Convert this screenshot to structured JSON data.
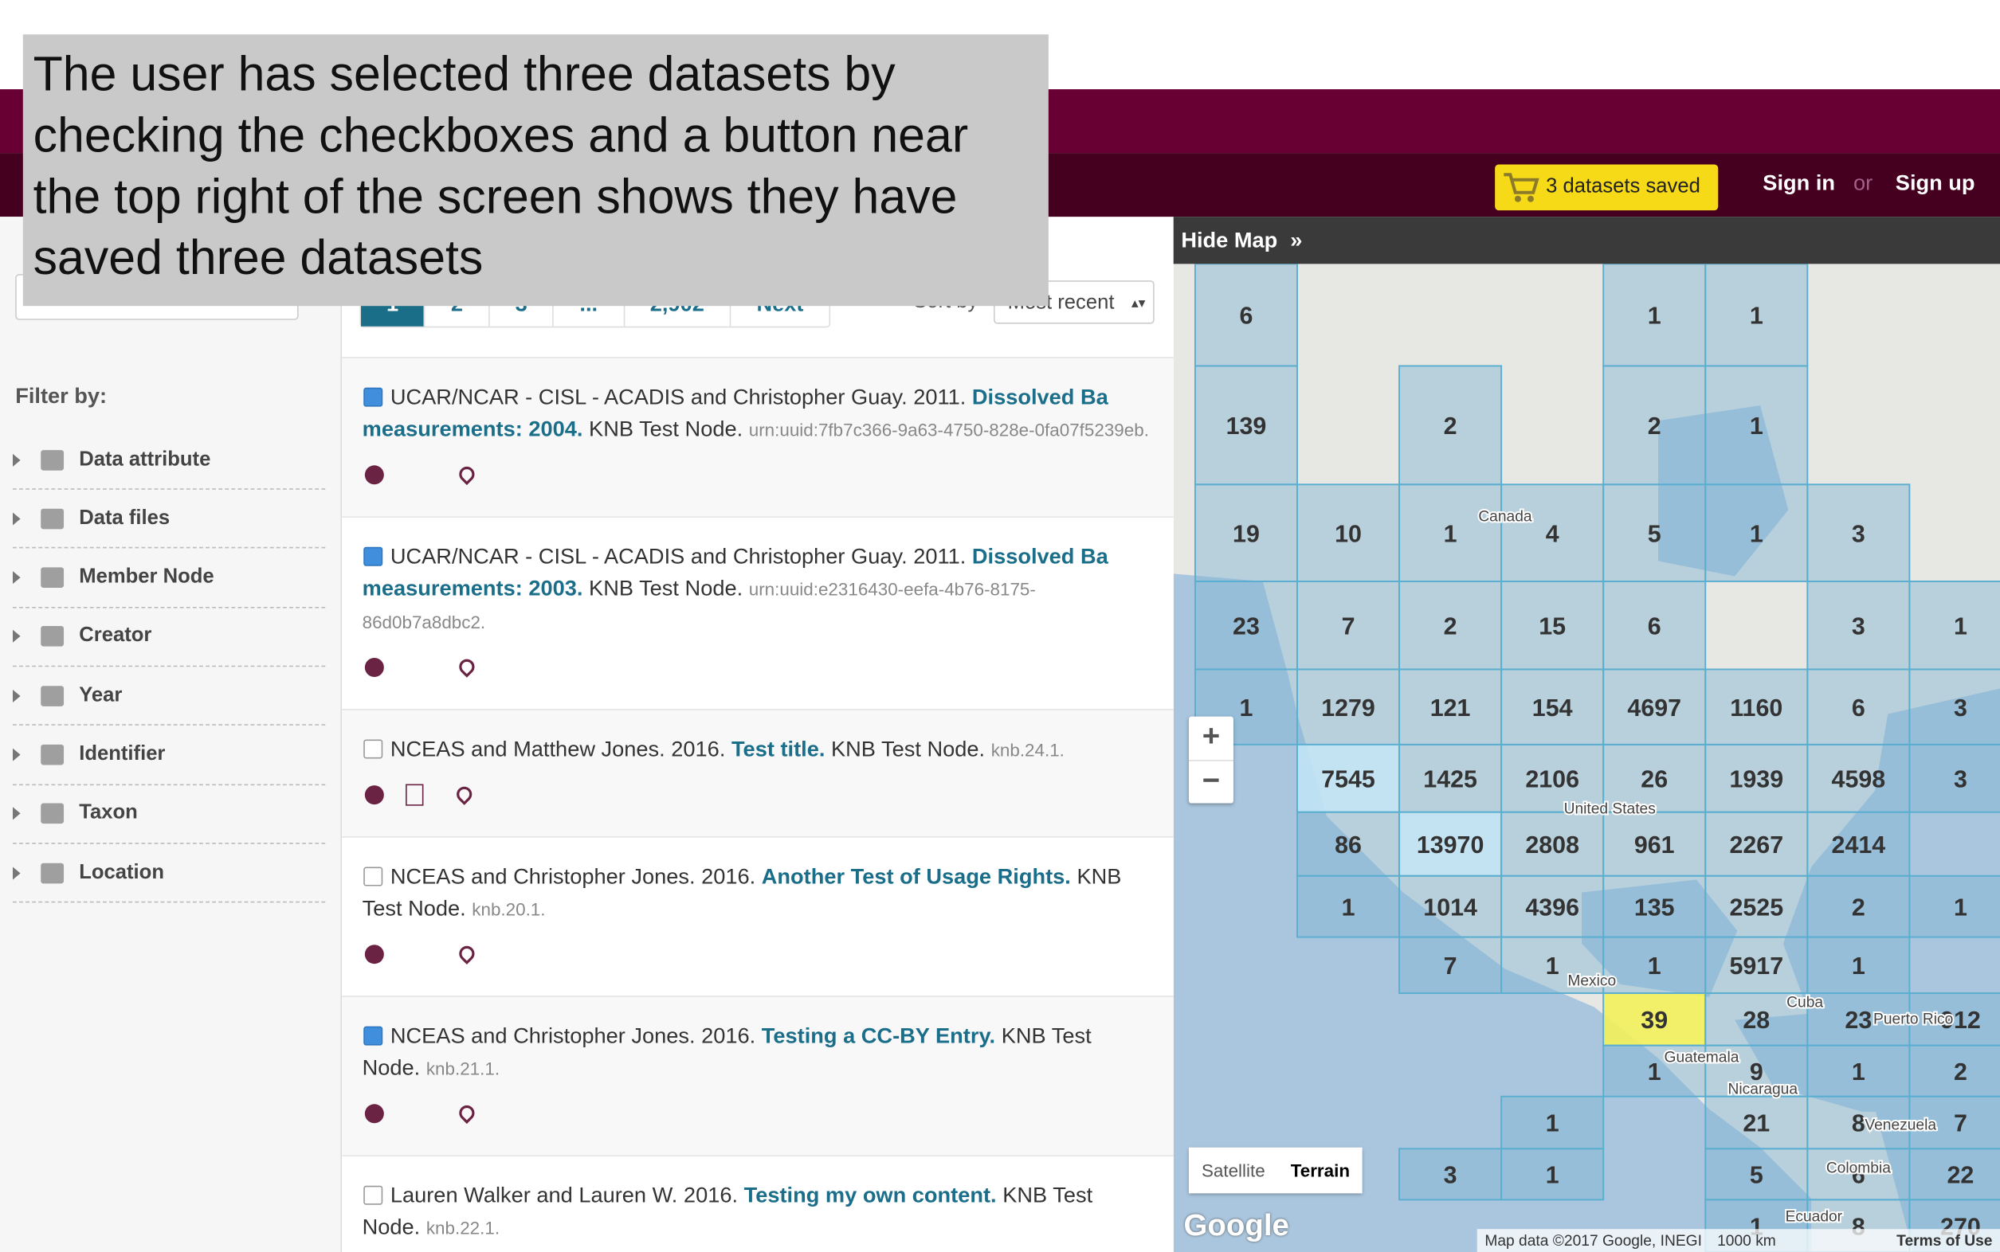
{
  "annotation": "The user has selected three datasets by checking the checkboxes and a button near the top right of the screen shows they have saved three datasets",
  "header": {
    "cart_button": "3 datasets saved",
    "sign_in": "Sign in",
    "or": "or",
    "sign_up": "Sign up"
  },
  "pagination": {
    "pages": [
      "1",
      "2",
      "3",
      "...",
      "2,902"
    ],
    "next": "Next",
    "sort_label": "Sort by",
    "sort_value": "Most recent"
  },
  "sidebar": {
    "heading": "Filter by:",
    "filters": [
      "Data attribute",
      "Data files",
      "Member Node",
      "Creator",
      "Year",
      "Identifier",
      "Taxon",
      "Location"
    ]
  },
  "results": [
    {
      "selected": true,
      "authors": "UCAR/NCAR - CISL - ACADIS and Christopher Guay. 2011.",
      "title": "Dissolved Ba measurements: 2004.",
      "node": "KNB Test Node.",
      "id": "urn:uuid:7fb7c366-9a63-4750-828e-0fa07f5239eb.",
      "has_data_file": false
    },
    {
      "selected": true,
      "authors": "UCAR/NCAR - CISL - ACADIS and Christopher Guay. 2011.",
      "title": "Dissolved Ba measurements: 2003.",
      "node": "KNB Test Node.",
      "id": "urn:uuid:e2316430-eefa-4b76-8175-86d0b7a8dbc2.",
      "has_data_file": false
    },
    {
      "selected": false,
      "authors": "NCEAS and Matthew Jones. 2016.",
      "title": "Test title.",
      "node": "KNB Test Node.",
      "id": "knb.24.1.",
      "has_data_file": true
    },
    {
      "selected": false,
      "authors": "NCEAS and Christopher Jones. 2016.",
      "title": "Another Test of Usage Rights.",
      "node": "KNB Test Node.",
      "id": "knb.20.1.",
      "has_data_file": false
    },
    {
      "selected": true,
      "authors": "NCEAS and Christopher Jones. 2016.",
      "title": "Testing a CC-BY Entry.",
      "node": "KNB Test Node.",
      "id": "knb.21.1.",
      "has_data_file": false
    },
    {
      "selected": false,
      "authors": "Lauren Walker and Lauren W. 2016.",
      "title": "Testing my own content.",
      "node": "KNB Test Node.",
      "id": "knb.22.1.",
      "has_data_file": false
    }
  ],
  "map": {
    "hide_map": "Hide Map",
    "cell_color": "#7fb3d3",
    "cells": [
      {
        "count": 6
      },
      {
        "count": 1
      },
      {
        "count": 1
      },
      {
        "count": 139
      },
      {
        "count": 2
      },
      {
        "count": 2
      },
      {
        "count": 1
      },
      {
        "count": 19
      },
      {
        "count": 10
      },
      {
        "count": 1
      },
      {
        "count": 4
      },
      {
        "count": 5
      },
      {
        "count": 1
      },
      {
        "count": 3
      },
      {
        "count": 23
      },
      {
        "count": 7
      },
      {
        "count": 2
      },
      {
        "count": 15
      },
      {
        "count": 6
      },
      {
        "count": 3
      },
      {
        "count": 1
      },
      {
        "count": 1
      },
      {
        "count": 1279
      },
      {
        "count": 121
      },
      {
        "count": 154
      },
      {
        "count": 4697
      },
      {
        "count": 1160
      },
      {
        "count": 6
      },
      {
        "count": 3
      },
      {
        "count": 7545,
        "color": "#bfe2f4"
      },
      {
        "count": 1425
      },
      {
        "count": 2106
      },
      {
        "count": 26
      },
      {
        "count": 1939
      },
      {
        "count": 4598
      },
      {
        "count": 3
      },
      {
        "count": 86
      },
      {
        "count": 13970,
        "color": "#bfe2f4"
      },
      {
        "count": 2808
      },
      {
        "count": 961
      },
      {
        "count": 2267
      },
      {
        "count": 2414
      },
      {
        "count": 1
      },
      {
        "count": 1014
      },
      {
        "count": 4396
      },
      {
        "count": 135
      },
      {
        "count": 2525
      },
      {
        "count": 2
      },
      {
        "count": 1
      },
      {
        "count": 7
      },
      {
        "count": 1
      },
      {
        "count": 1
      },
      {
        "count": 5917
      },
      {
        "count": 1
      },
      {
        "count": 39,
        "color": "#f3f05a"
      },
      {
        "count": 28
      },
      {
        "count": 23
      },
      {
        "count": 912
      },
      {
        "count": 1
      },
      {
        "count": 9
      },
      {
        "count": 1
      },
      {
        "count": 2
      },
      {
        "count": 1
      },
      {
        "count": 21
      },
      {
        "count": 8
      },
      {
        "count": 7
      },
      {
        "count": 3
      },
      {
        "count": 1
      },
      {
        "count": 5
      },
      {
        "count": 6
      },
      {
        "count": 22
      },
      {
        "count": 1
      },
      {
        "count": 8
      },
      {
        "count": 270
      }
    ],
    "places": [
      "Canada",
      "United States",
      "Mexico",
      "Cuba",
      "Guatemala",
      "Nicaragua",
      "Venezuela",
      "Colombia",
      "Ecuador",
      "Puerto Rico"
    ],
    "zoom_in": "+",
    "zoom_out": "−",
    "map_types": [
      "Satellite",
      "Terrain"
    ],
    "logo": "Google",
    "attribution": "Map data ©2017 Google, INEGI",
    "scale": "1000 km",
    "terms": "Terms of Use"
  }
}
